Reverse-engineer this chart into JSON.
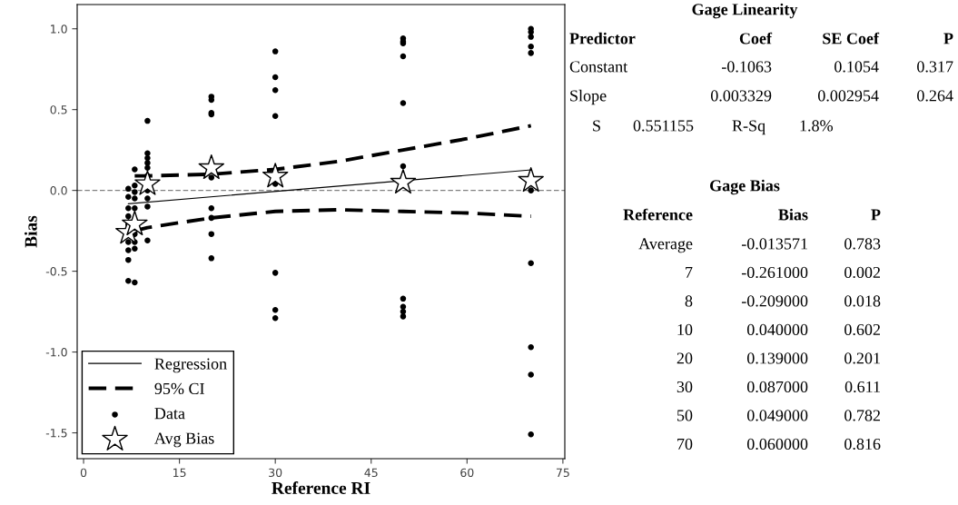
{
  "chart_data": {
    "type": "scatter",
    "xlabel": "Reference RI",
    "ylabel": "Bias",
    "xlim": [
      -1,
      75.3
    ],
    "ylim": [
      -1.66,
      1.15
    ],
    "xticks": [
      0,
      15,
      30,
      45,
      60,
      75
    ],
    "yticks": [
      -1.5,
      {
        "value": -1,
        "label": "-1.0"
      },
      -0.5,
      {
        "value": 0,
        "label": "0.0"
      },
      0.5,
      {
        "value": 1,
        "label": "1.0"
      }
    ],
    "grid": false,
    "legend": "bottom left",
    "ref_lines": [
      {
        "axis": "y",
        "value": 0,
        "color": "#808080",
        "line_style": "dashed"
      }
    ],
    "series": [
      {
        "name": "Regression",
        "type": "line",
        "color": "#000000",
        "line_style": "solid",
        "marker": "none",
        "x": [
          7,
          70
        ],
        "values": [
          -0.083,
          0.127
        ]
      },
      {
        "name": "95% CI",
        "type": "line",
        "color": "#000000",
        "line_style": "dashed",
        "marker": "none",
        "x": [
          8,
          10,
          20,
          30,
          40,
          50,
          60,
          70
        ],
        "values": [
          0.09,
          0.09,
          0.1,
          0.13,
          0.18,
          0.25,
          0.32,
          0.4
        ]
      },
      {
        "type": "line",
        "color": "#000000",
        "line_style": "dashed",
        "marker": "none",
        "x": [
          8,
          10,
          20,
          30,
          40,
          50,
          60,
          70
        ],
        "values": [
          -0.25,
          -0.23,
          -0.17,
          -0.13,
          -0.12,
          -0.13,
          -0.14,
          -0.16
        ]
      },
      {
        "name": "Data",
        "color": "#000000",
        "marker": "circle",
        "x": [
          7,
          7,
          7,
          7,
          7,
          7,
          7,
          7,
          7,
          8,
          8,
          8,
          8,
          8,
          8,
          8,
          8,
          8,
          10,
          10,
          10,
          10,
          10,
          10,
          10,
          10,
          10,
          10,
          20,
          20,
          20,
          20,
          20,
          20,
          20,
          20,
          20,
          30,
          30,
          30,
          30,
          30,
          30,
          30,
          30,
          50,
          50,
          50,
          50,
          50,
          50,
          50,
          50,
          50,
          50,
          50,
          70,
          70,
          70,
          70,
          70,
          70,
          70,
          70,
          70,
          70
        ],
        "values": [
          0.01,
          -0.04,
          -0.11,
          -0.16,
          -0.21,
          -0.32,
          -0.37,
          -0.43,
          -0.56,
          0.13,
          0.03,
          -0.01,
          -0.05,
          -0.11,
          -0.27,
          -0.32,
          -0.36,
          -0.57,
          0.43,
          0.23,
          0.2,
          0.17,
          0.14,
          0.09,
          0.0,
          -0.05,
          -0.1,
          -0.31,
          0.58,
          0.56,
          0.48,
          0.47,
          0.08,
          -0.11,
          -0.17,
          -0.27,
          -0.42,
          0.86,
          0.7,
          0.62,
          0.46,
          0.04,
          -0.51,
          -0.74,
          -0.79,
          0.94,
          0.92,
          0.91,
          0.83,
          0.54,
          0.15,
          0.08,
          -0.67,
          -0.72,
          -0.75,
          -0.78,
          1.0,
          0.98,
          0.95,
          0.89,
          0.85,
          0.0,
          -0.45,
          -0.97,
          -1.14,
          -1.51
        ]
      },
      {
        "name": "Avg Bias",
        "color": "#ffffff",
        "marker": "star",
        "x": [
          7,
          8,
          10,
          20,
          30,
          50,
          70
        ],
        "values": [
          -0.261,
          -0.209,
          0.04,
          0.139,
          0.087,
          0.049,
          0.06
        ]
      }
    ],
    "annotations": [
      "Gage Linearity",
      "Predictor",
      "Coef",
      "SE Coef",
      "P",
      "Constant",
      "-0.1063",
      "0.1054",
      "0.317",
      "Slope",
      "0.003329",
      "0.002954",
      "0.264",
      "S",
      "0.551155",
      "R-Sq",
      "1.8%",
      "Gage Bias",
      "Reference",
      "Bias",
      "P",
      "Average",
      "-0.013571",
      "0.783",
      "7",
      "-0.261000",
      "0.002",
      "8",
      "-0.209000",
      "0.018",
      "10",
      "0.040000",
      "0.602",
      "20",
      "0.139000",
      "0.201",
      "30",
      "0.087000",
      "0.611",
      "50",
      "0.049000",
      "0.782",
      "70",
      "0.060000",
      "0.816"
    ]
  }
}
